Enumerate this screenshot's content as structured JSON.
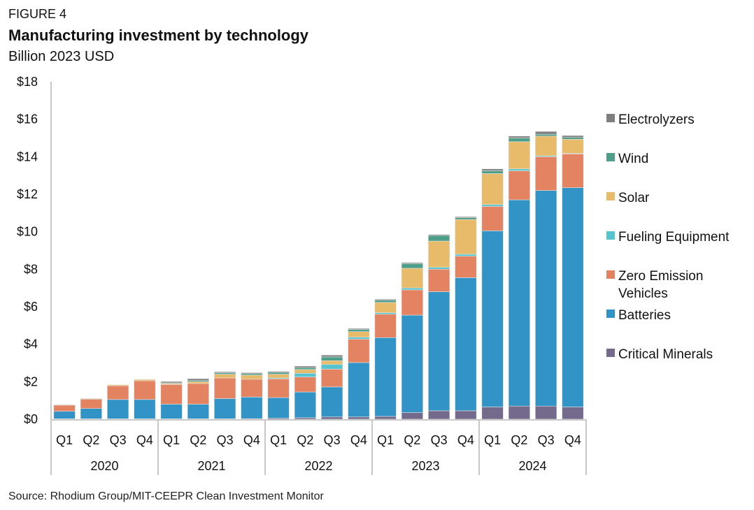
{
  "figure_label": "FIGURE 4",
  "source": "Source: Rhodium Group/MIT-CEEPR Clean Investment Monitor",
  "chart_data": {
    "type": "bar",
    "stacked": true,
    "title": "Manufacturing investment by technology",
    "subtitle": "Billion 2023 USD",
    "xlabel": "",
    "ylabel": "Billion 2023 USD",
    "ylim": [
      0,
      18
    ],
    "yticks": [
      0,
      2,
      4,
      6,
      8,
      10,
      12,
      14,
      16,
      18
    ],
    "ytick_labels": [
      "$0",
      "$2",
      "$4",
      "$6",
      "$8",
      "$10",
      "$12",
      "$14",
      "$16",
      "$18"
    ],
    "grid": false,
    "legend_position": "right",
    "categories": [
      "Q1",
      "Q2",
      "Q3",
      "Q4",
      "Q1",
      "Q2",
      "Q3",
      "Q4",
      "Q1",
      "Q2",
      "Q3",
      "Q4",
      "Q1",
      "Q2",
      "Q3",
      "Q4",
      "Q1",
      "Q2",
      "Q3",
      "Q4"
    ],
    "year_groups": [
      {
        "label": "2020",
        "count": 4
      },
      {
        "label": "2021",
        "count": 4
      },
      {
        "label": "2022",
        "count": 4
      },
      {
        "label": "2023",
        "count": 4
      },
      {
        "label": "2024",
        "count": 4
      }
    ],
    "series": [
      {
        "name": "Critical Minerals",
        "color": "#736A8C",
        "values": [
          0.02,
          0.02,
          0.02,
          0.02,
          0.02,
          0.02,
          0.02,
          0.03,
          0.05,
          0.08,
          0.12,
          0.12,
          0.15,
          0.35,
          0.45,
          0.45,
          0.65,
          0.7,
          0.7,
          0.65
        ]
      },
      {
        "name": "Batteries",
        "color": "#3193C6",
        "values": [
          0.4,
          0.55,
          1.03,
          1.03,
          0.78,
          0.78,
          1.08,
          1.15,
          1.1,
          1.37,
          1.6,
          2.9,
          4.2,
          5.2,
          6.35,
          7.1,
          9.4,
          11.0,
          11.5,
          11.7
        ]
      },
      {
        "name": "Zero Emission Vehicles",
        "color": "#E38361",
        "values": [
          0.33,
          0.5,
          0.73,
          1.0,
          1.05,
          1.1,
          1.1,
          0.95,
          1.0,
          0.8,
          0.95,
          1.25,
          1.25,
          1.35,
          1.2,
          1.15,
          1.3,
          1.55,
          1.8,
          1.8
        ]
      },
      {
        "name": "Fueling Equipment",
        "color": "#56C5CF",
        "values": [
          0,
          0,
          0,
          0,
          0,
          0,
          0,
          0,
          0.05,
          0.2,
          0.25,
          0.1,
          0.08,
          0.1,
          0.1,
          0.1,
          0.1,
          0.1,
          0.05,
          0.03
        ]
      },
      {
        "name": "Solar",
        "color": "#E8BB6A",
        "values": [
          0.02,
          0.03,
          0.05,
          0.07,
          0.05,
          0.1,
          0.2,
          0.22,
          0.2,
          0.2,
          0.2,
          0.3,
          0.55,
          1.05,
          1.4,
          1.85,
          1.65,
          1.45,
          1.05,
          0.75
        ]
      },
      {
        "name": "Wind",
        "color": "#4E9E8A",
        "values": [
          0,
          0,
          0,
          0,
          0.04,
          0.06,
          0.08,
          0.08,
          0.1,
          0.1,
          0.2,
          0.12,
          0.12,
          0.25,
          0.3,
          0.1,
          0.15,
          0.2,
          0.1,
          0.1
        ]
      },
      {
        "name": "Electrolyzers",
        "color": "#7F7F7F",
        "values": [
          0,
          0,
          0,
          0,
          0.07,
          0.1,
          0.05,
          0.05,
          0.05,
          0.08,
          0.1,
          0.05,
          0.05,
          0.05,
          0.05,
          0.05,
          0.1,
          0.1,
          0.15,
          0.1
        ]
      }
    ],
    "legend_order": [
      "Electrolyzers",
      "Wind",
      "Solar",
      "Fueling Equipment",
      "Zero Emission Vehicles",
      "Batteries",
      "Critical Minerals"
    ]
  }
}
